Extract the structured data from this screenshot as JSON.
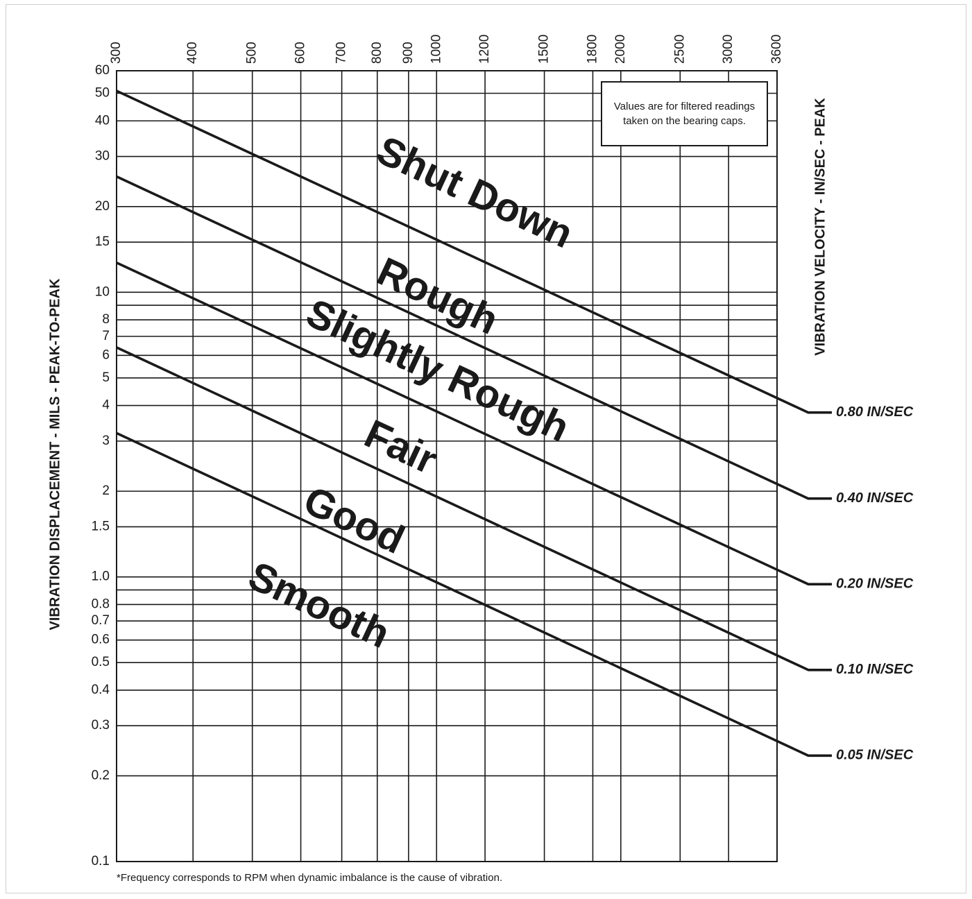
{
  "chart_data": {
    "type": "line",
    "xscale": "log",
    "yscale": "log",
    "xlim": [
      300,
      3600
    ],
    "ylim": [
      0.1,
      60
    ],
    "x_ticks": [
      300,
      400,
      500,
      600,
      700,
      800,
      900,
      1000,
      1200,
      1500,
      1800,
      2000,
      2500,
      3000,
      3600
    ],
    "x_tick_labels": [
      "300",
      "400",
      "500",
      "600",
      "700",
      "800",
      "900",
      "1000",
      "1200",
      "1500",
      "1800",
      "2000",
      "2500",
      "3000",
      "3600"
    ],
    "y_ticks": [
      60,
      50,
      40,
      30,
      20,
      15,
      10,
      8,
      7,
      6,
      5,
      4,
      3,
      2,
      1.5,
      1.0,
      0.8,
      0.7,
      0.6,
      0.5,
      0.4,
      0.3,
      0.2,
      0.1
    ],
    "y_tick_labels": [
      "60",
      "50",
      "40",
      "30",
      "20",
      "15",
      "10",
      "8",
      "7",
      "6",
      "5",
      "4",
      "3",
      "2",
      "1.5",
      "1.0",
      "0.8",
      "0.7",
      "0.6",
      "0.5",
      "0.4",
      "0.3",
      "0.2",
      "0.1"
    ],
    "extra_gridlines_y": [
      9,
      0.9
    ],
    "grid": true,
    "ylabel": "VIBRATION DISPLACEMENT - MILS - PEAK-TO-PEAK",
    "y2label": "VIBRATION VELOCITY - IN/SEC - PEAK",
    "series": [
      {
        "name": "0.80 IN/SEC",
        "x": [
          300,
          3600
        ],
        "y": [
          51,
          4.25
        ]
      },
      {
        "name": "0.40 IN/SEC",
        "x": [
          300,
          3600
        ],
        "y": [
          25.5,
          2.12
        ]
      },
      {
        "name": "0.20 IN/SEC",
        "x": [
          300,
          3600
        ],
        "y": [
          12.7,
          1.06
        ]
      },
      {
        "name": "0.10 IN/SEC",
        "x": [
          300,
          3600
        ],
        "y": [
          6.4,
          0.53
        ]
      },
      {
        "name": "0.05 IN/SEC",
        "x": [
          300,
          3600
        ],
        "y": [
          3.2,
          0.265
        ]
      }
    ],
    "zones": [
      {
        "label": "Shut Down",
        "x": 1150,
        "y": 22
      },
      {
        "label": "Rough",
        "x": 1000,
        "y": 9.5
      },
      {
        "label": "Slightly Rough",
        "x": 1000,
        "y": 5.2
      },
      {
        "label": "Fair",
        "x": 870,
        "y": 2.8
      },
      {
        "label": "Good",
        "x": 730,
        "y": 1.55
      },
      {
        "label": "Smooth",
        "x": 640,
        "y": 0.78
      }
    ],
    "annotation": "Values are for filtered readings taken on the bearing caps.",
    "footnote": "*Frequency corresponds to RPM when dynamic imbalance is the cause of vibration."
  }
}
